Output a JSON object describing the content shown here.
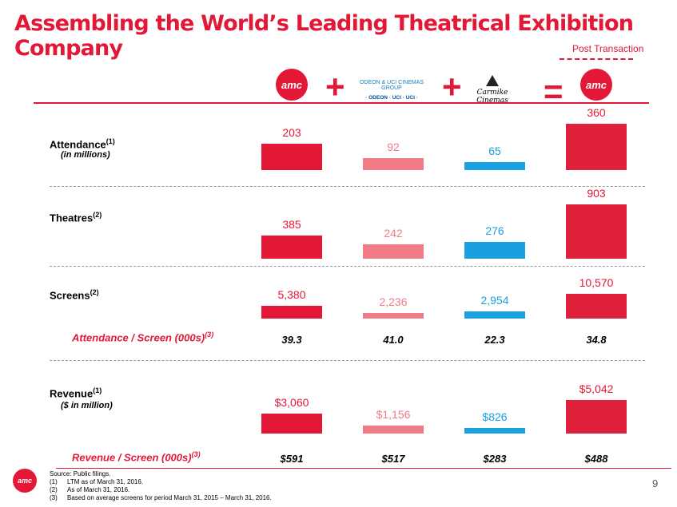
{
  "title": "Assembling the World’s Leading Theatrical Exhibition Company",
  "post_transaction": "Post Transaction",
  "logos": {
    "amc": "amc",
    "odeon_group": "ODEON & UCI CINEMAS GROUP",
    "odeon_sub": "· ODEON · UCI · UCI ·",
    "carmike": "Carmike Cinemas",
    "plus": "+",
    "equals": "="
  },
  "colors": {
    "amc": "#e31837",
    "odeon": "#f07b87",
    "carmike": "#1aa0e0",
    "combined": "#e0203a"
  },
  "labels": {
    "attendance": "Attendance",
    "attendance_sup": "(1)",
    "attendance_sub": "(in millions)",
    "theatres": "Theatres",
    "theatres_sup": "(2)",
    "screens": "Screens",
    "screens_sup": "(2)",
    "att_screen": "Attendance / Screen (000s)",
    "att_screen_sup": "(3)",
    "revenue": "Revenue",
    "revenue_sup": "(1)",
    "revenue_sub": "($ in million)",
    "rev_screen": "Revenue / Screen (000s)",
    "rev_screen_sup": "(3)"
  },
  "chart_data": [
    {
      "type": "bar",
      "metric": "Attendance",
      "categories": [
        "AMC",
        "Odeon & UCI",
        "Carmike",
        "Combined"
      ],
      "values": [
        203,
        92,
        65,
        360
      ],
      "labels": [
        "203",
        "92",
        "65",
        "360"
      ]
    },
    {
      "type": "bar",
      "metric": "Theatres",
      "categories": [
        "AMC",
        "Odeon & UCI",
        "Carmike",
        "Combined"
      ],
      "values": [
        385,
        242,
        276,
        903
      ],
      "labels": [
        "385",
        "242",
        "276",
        "903"
      ]
    },
    {
      "type": "bar",
      "metric": "Screens",
      "categories": [
        "AMC",
        "Odeon & UCI",
        "Carmike",
        "Combined"
      ],
      "values": [
        5380,
        2236,
        2954,
        10570
      ],
      "labels": [
        "5,380",
        "2,236",
        "2,954",
        "10,570"
      ]
    },
    {
      "type": "bar",
      "metric": "Revenue",
      "categories": [
        "AMC",
        "Odeon & UCI",
        "Carmike",
        "Combined"
      ],
      "values": [
        3060,
        1156,
        826,
        5042
      ],
      "labels": [
        "$3,060",
        "$1,156",
        "$826",
        "$5,042"
      ]
    }
  ],
  "att_per_screen": [
    "39.3",
    "41.0",
    "22.3",
    "34.8"
  ],
  "rev_per_screen": [
    "$591",
    "$517",
    "$283",
    "$488"
  ],
  "footnotes": {
    "source": "Source: Public filings.",
    "notes": [
      {
        "n": "(1)",
        "t": "LTM as of March 31, 2016."
      },
      {
        "n": "(2)",
        "t": "As of March 31, 2016."
      },
      {
        "n": "(3)",
        "t": "Based on average screens for period March 31, 2015 – March 31, 2016."
      }
    ]
  },
  "page_number": "9"
}
